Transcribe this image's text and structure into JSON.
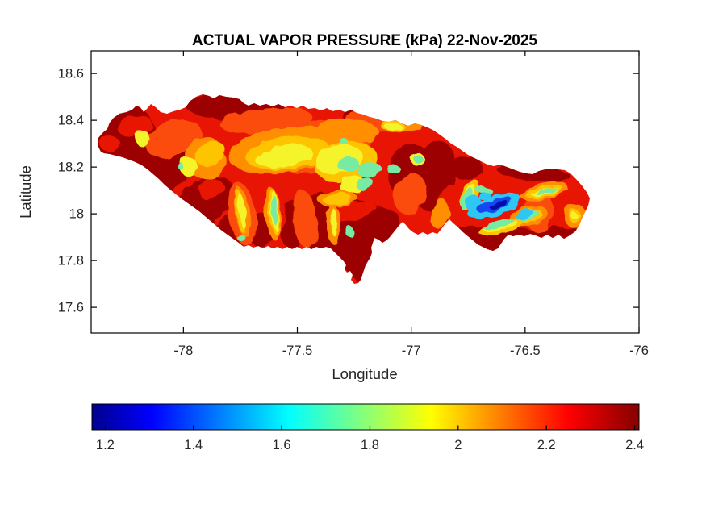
{
  "figure": {
    "title": "ACTUAL VAPOR PRESSURE (kPa) 22-Nov-2025",
    "background": "#FFFFFF"
  },
  "axes": {
    "xlabel": "Longitude",
    "ylabel": "Latitude",
    "x_ticks": [
      {
        "v": -78,
        "label": "-78"
      },
      {
        "v": -77.5,
        "label": "-77.5"
      },
      {
        "v": -77,
        "label": "-77"
      },
      {
        "v": -76.5,
        "label": "-76.5"
      },
      {
        "v": -76,
        "label": "-76"
      }
    ],
    "y_ticks": [
      {
        "v": 18.6,
        "label": "18.6"
      },
      {
        "v": 18.4,
        "label": "18.4"
      },
      {
        "v": 18.2,
        "label": "18.2"
      },
      {
        "v": 18,
        "label": "18"
      },
      {
        "v": 17.8,
        "label": "17.8"
      },
      {
        "v": 17.6,
        "label": "17.6"
      }
    ],
    "xlim": [
      -78.405,
      -76.0
    ],
    "ylim": [
      17.49,
      18.697
    ],
    "box_color": "#000000",
    "label_color": "#262626"
  },
  "colorbar": {
    "orientation": "horizontal",
    "colormap": "jet",
    "limits": [
      1.17,
      2.41
    ],
    "ticks": [
      {
        "v": 1.2,
        "label": "1.2"
      },
      {
        "v": 1.4,
        "label": "1.4"
      },
      {
        "v": 1.6,
        "label": "1.6"
      },
      {
        "v": 1.8,
        "label": "1.8"
      },
      {
        "v": 2,
        "label": "2"
      },
      {
        "v": 2.2,
        "label": "2.2"
      },
      {
        "v": 2.4,
        "label": "2.4"
      }
    ],
    "gradient_stops": [
      [
        0,
        "#00008F"
      ],
      [
        0.11,
        "#0000FF"
      ],
      [
        0.36,
        "#00FFFF"
      ],
      [
        0.62,
        "#FFFF00"
      ],
      [
        0.87,
        "#FF0000"
      ],
      [
        1,
        "#850000"
      ]
    ]
  },
  "map": {
    "region": "Jamaica",
    "band_colors": {
      "darkred": "#9C0605",
      "red": "#E81505",
      "orangered": "#FB4B07",
      "orange": "#FF8F00",
      "yelloworange": "#FFC405",
      "yellow": "#F5F32B",
      "green": "#77EBA4",
      "cyan": "#2EC6F2",
      "blue": "#1747F0",
      "navy": "#0009A8"
    }
  },
  "chart_data": {
    "type": "heatmap",
    "title": "ACTUAL VAPOR PRESSURE (kPa) 22-Nov-2025",
    "region": "Jamaica",
    "units": "kPa",
    "date": "22-Nov-2025",
    "xlabel": "Longitude",
    "ylabel": "Latitude",
    "x_ticks": [
      -78,
      -77.5,
      -77,
      -76.5,
      -76
    ],
    "y_ticks": [
      18.6,
      18.4,
      18.2,
      18,
      17.8,
      17.6
    ],
    "xlim": [
      -78.4,
      -76.0
    ],
    "ylim": [
      17.49,
      18.7
    ],
    "colormap": "jet",
    "colorbar_ticks": [
      1.2,
      1.4,
      1.6,
      1.8,
      2,
      2.2,
      2.4
    ],
    "colorbar_range": [
      1.17,
      2.41
    ],
    "grid": false,
    "legend": "horizontal colorbar below axes",
    "features": [
      {
        "area": "coastal lowlands along most of the island outline",
        "approx_value_kPa": "2.3 to 2.4"
      },
      {
        "area": "western tip and southwest coast",
        "approx_value_kPa": "2.3 to 2.4"
      },
      {
        "area": "west-central interior patches",
        "approx_value_kPa": "1.9 to 2.2"
      },
      {
        "area": "central uplands (yellow/green zone near -77.4, 18.2)",
        "approx_value_kPa": "1.6 to 2.0"
      },
      {
        "area": "narrow north-south valley streaks near -77.7 to -77.9, 17.9-18.2",
        "approx_value_kPa": "1.8 to 2.1"
      },
      {
        "area": "south-central dark mass and Portland Ridge peninsula",
        "approx_value_kPa": "2.35 to 2.4"
      },
      {
        "area": "Blue Mountains core near -76.6, 18.05",
        "approx_value_kPa": "1.2 to 1.4"
      },
      {
        "area": "rings around Blue Mountains core",
        "approx_value_kPa": "1.5 to 1.9"
      },
      {
        "area": "eastern tip with small yellow spot",
        "approx_value_kPa": "1.9 to 2.2"
      }
    ]
  }
}
